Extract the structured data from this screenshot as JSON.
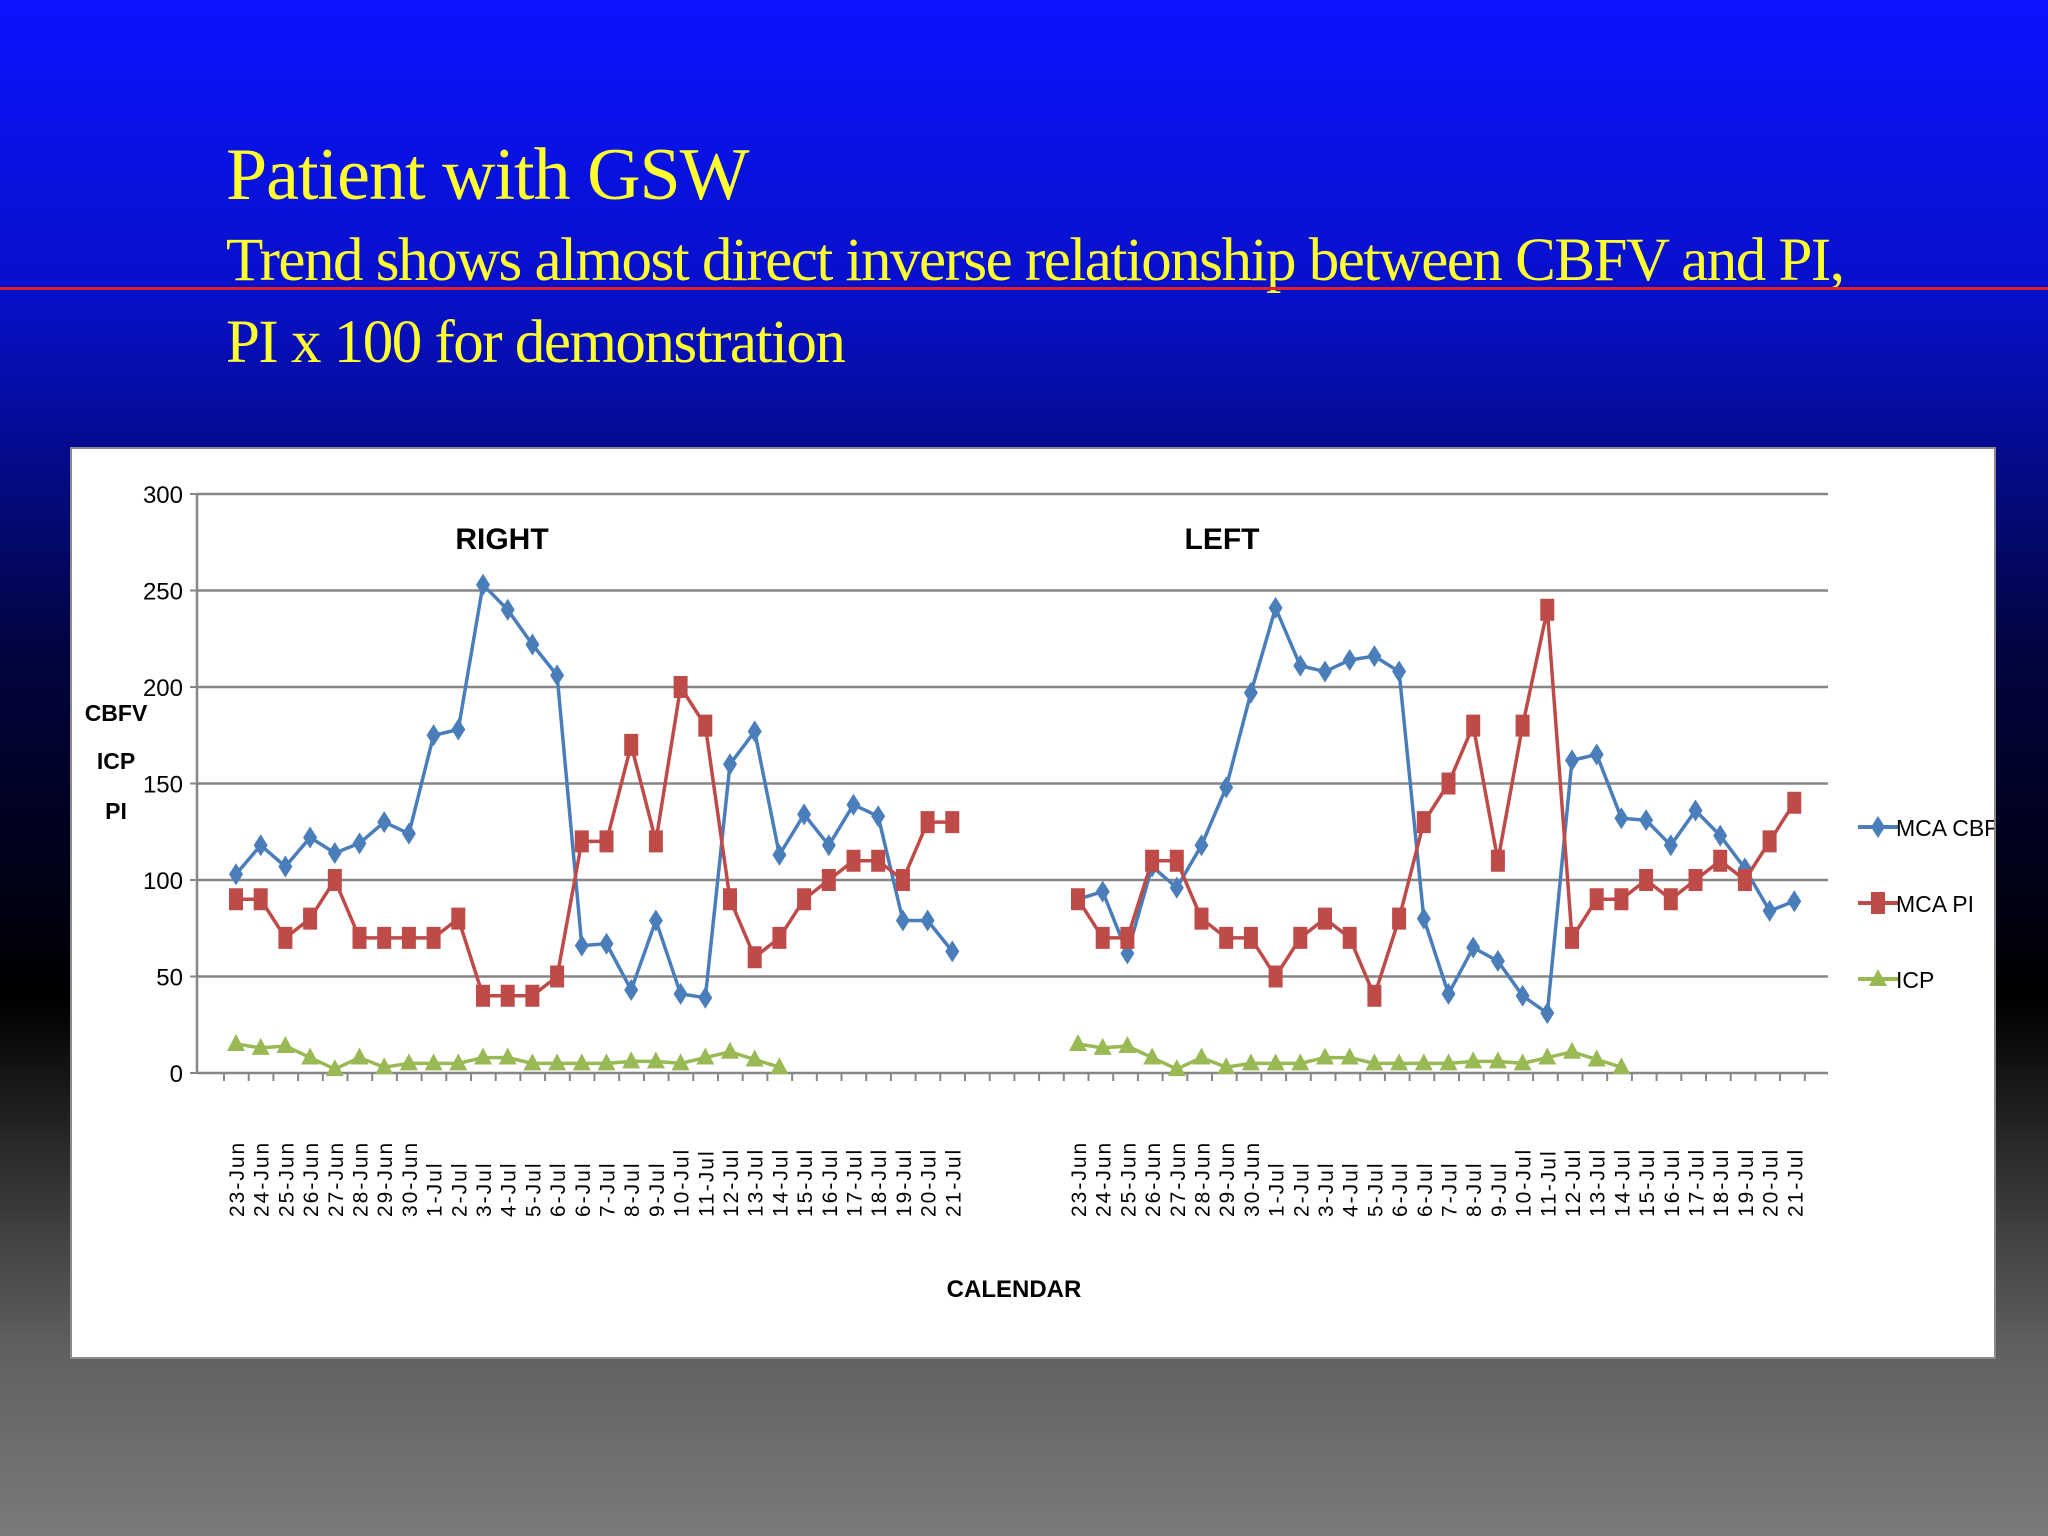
{
  "slide": {
    "title": "Patient with GSW",
    "subtitle_line1": "Trend shows almost direct inverse relationship between CBFV and PI,",
    "subtitle_line2": "PI x 100 for demonstration"
  },
  "colors": {
    "title": "#ffff2e",
    "accent_rule": "#e0202a",
    "cbfv": "#4a7ebb",
    "pi": "#be4b48",
    "icp": "#98b954",
    "grid": "#868686"
  },
  "chart_data": {
    "type": "line",
    "xlabel": "CALENDAR",
    "ylabel_lines": [
      "CBFV",
      "ICP",
      "PI"
    ],
    "ylim": [
      0,
      300
    ],
    "yticks": [
      0,
      50,
      100,
      150,
      200,
      250,
      300
    ],
    "grid": true,
    "legend_position": "right",
    "legend": [
      "MCA CBFV",
      "MCA PI",
      "ICP"
    ],
    "panels": [
      {
        "title": "RIGHT",
        "categories": [
          "23-Jun",
          "24-Jun",
          "25-Jun",
          "26-Jun",
          "27-Jun",
          "28-Jun",
          "29-Jun",
          "30-Jun",
          "1-Jul",
          "2-Jul",
          "3-Jul",
          "4-Jul",
          "5-Jul",
          "6-Jul",
          "6-Jul",
          "7-Jul",
          "8-Jul",
          "9-Jul",
          "10-Jul",
          "11-Jul",
          "12-Jul",
          "13-Jul",
          "14-Jul",
          "15-Jul",
          "16-Jul",
          "17-Jul",
          "18-Jul",
          "19-Jul",
          "20-Jul",
          "21-Jul"
        ],
        "series": [
          {
            "name": "MCA CBFV",
            "values": [
              103,
              118,
              107,
              122,
              114,
              119,
              130,
              124,
              175,
              178,
              253,
              240,
              222,
              206,
              66,
              67,
              43,
              79,
              41,
              39,
              160,
              177,
              113,
              134,
              118,
              139,
              133,
              79,
              79,
              63
            ]
          },
          {
            "name": "MCA PI",
            "values": [
              90,
              90,
              70,
              80,
              100,
              70,
              70,
              70,
              70,
              80,
              40,
              40,
              40,
              50,
              120,
              120,
              170,
              120,
              200,
              180,
              90,
              60,
              70,
              90,
              100,
              110,
              110,
              100,
              130,
              130
            ]
          },
          {
            "name": "ICP",
            "values": [
              15,
              13,
              14,
              8,
              2,
              8,
              3,
              5,
              5,
              5,
              8,
              8,
              5,
              5,
              5,
              5,
              6,
              6,
              5,
              8,
              11,
              7,
              3,
              null,
              null,
              null,
              null,
              null,
              null,
              null
            ]
          }
        ]
      },
      {
        "title": "LEFT",
        "categories": [
          "23-Jun",
          "24-Jun",
          "25-Jun",
          "26-Jun",
          "27-Jun",
          "28-Jun",
          "29-Jun",
          "30-Jun",
          "1-Jul",
          "2-Jul",
          "3-Jul",
          "4-Jul",
          "5-Jul",
          "6-Jul",
          "6-Jul",
          "7-Jul",
          "8-Jul",
          "9-Jul",
          "10-Jul",
          "11-Jul",
          "12-Jul",
          "13-Jul",
          "14-Jul",
          "15-Jul",
          "16-Jul",
          "17-Jul",
          "18-Jul",
          "19-Jul",
          "20-Jul",
          "21-Jul"
        ],
        "series": [
          {
            "name": "MCA CBFV",
            "values": [
              90,
              94,
              62,
              107,
              96,
              118,
              148,
              197,
              241,
              211,
              208,
              214,
              216,
              208,
              80,
              41,
              65,
              58,
              40,
              31,
              162,
              165,
              132,
              131,
              118,
              136,
              123,
              106,
              84,
              89
            ]
          },
          {
            "name": "MCA PI",
            "values": [
              90,
              70,
              70,
              110,
              110,
              80,
              70,
              70,
              50,
              70,
              80,
              70,
              40,
              80,
              130,
              150,
              180,
              110,
              180,
              240,
              70,
              90,
              90,
              100,
              90,
              100,
              110,
              100,
              120,
              140
            ]
          },
          {
            "name": "ICP",
            "values": [
              15,
              13,
              14,
              8,
              2,
              8,
              3,
              5,
              5,
              5,
              8,
              8,
              5,
              5,
              5,
              5,
              6,
              6,
              5,
              8,
              11,
              7,
              3,
              null,
              null,
              null,
              null,
              null,
              null,
              null
            ]
          }
        ]
      }
    ]
  }
}
